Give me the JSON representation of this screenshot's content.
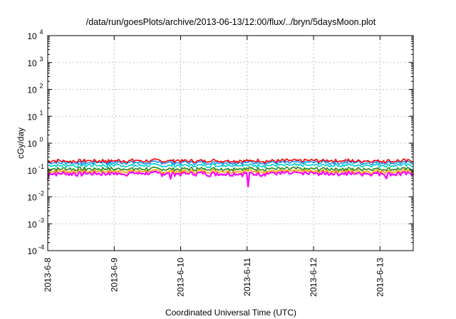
{
  "chart_data": {
    "type": "line",
    "title": "/data/run/goesPlots/archive/2013-06-13/12:00/flux/../bryn/5daysMoon.plot",
    "xlabel": "Coordinated Universal Time (UTC)",
    "ylabel": "cGy/day",
    "yscale": "log",
    "ylim": [
      0.0001,
      10000
    ],
    "xlim": [
      "2013-06-08T00:00",
      "2013-06-13T12:00"
    ],
    "grid": true,
    "legend": "none",
    "y_ticks": [
      {
        "value": 0.0001,
        "base": "10",
        "exp": "-4"
      },
      {
        "value": 0.001,
        "base": "10",
        "exp": "-3"
      },
      {
        "value": 0.01,
        "base": "10",
        "exp": "-2"
      },
      {
        "value": 0.1,
        "base": "10",
        "exp": "-1"
      },
      {
        "value": 1,
        "base": "10",
        "exp": "0"
      },
      {
        "value": 10,
        "base": "10",
        "exp": "1"
      },
      {
        "value": 100,
        "base": "10",
        "exp": "2"
      },
      {
        "value": 1000,
        "base": "10",
        "exp": "3"
      },
      {
        "value": 10000,
        "base": "10",
        "exp": "4"
      }
    ],
    "x_ticks": [
      {
        "value": "2013-06-08T00:00",
        "label": "2013-6-8"
      },
      {
        "value": "2013-06-09T00:00",
        "label": "2013-6-9"
      },
      {
        "value": "2013-06-10T00:00",
        "label": "2013-6-10"
      },
      {
        "value": "2013-06-11T00:00",
        "label": "2013-6-11"
      },
      {
        "value": "2013-06-12T00:00",
        "label": "2013-6-12"
      },
      {
        "value": "2013-06-13T00:00",
        "label": "2013-6-13"
      }
    ],
    "series": [
      {
        "color": "#ff00ff",
        "level": 0.075,
        "amplitude": 0.25
      },
      {
        "color": "#ffa500",
        "level": 0.09,
        "amplitude": 0.2
      },
      {
        "color": "#228b22",
        "level": 0.11,
        "amplitude": 0.2
      },
      {
        "color": "#00ced1",
        "level": 0.15,
        "amplitude": 0.2
      },
      {
        "color": "#1e90ff",
        "level": 0.19,
        "amplitude": 0.2
      },
      {
        "color": "#ff0000",
        "level": 0.22,
        "amplitude": 0.2
      }
    ]
  }
}
